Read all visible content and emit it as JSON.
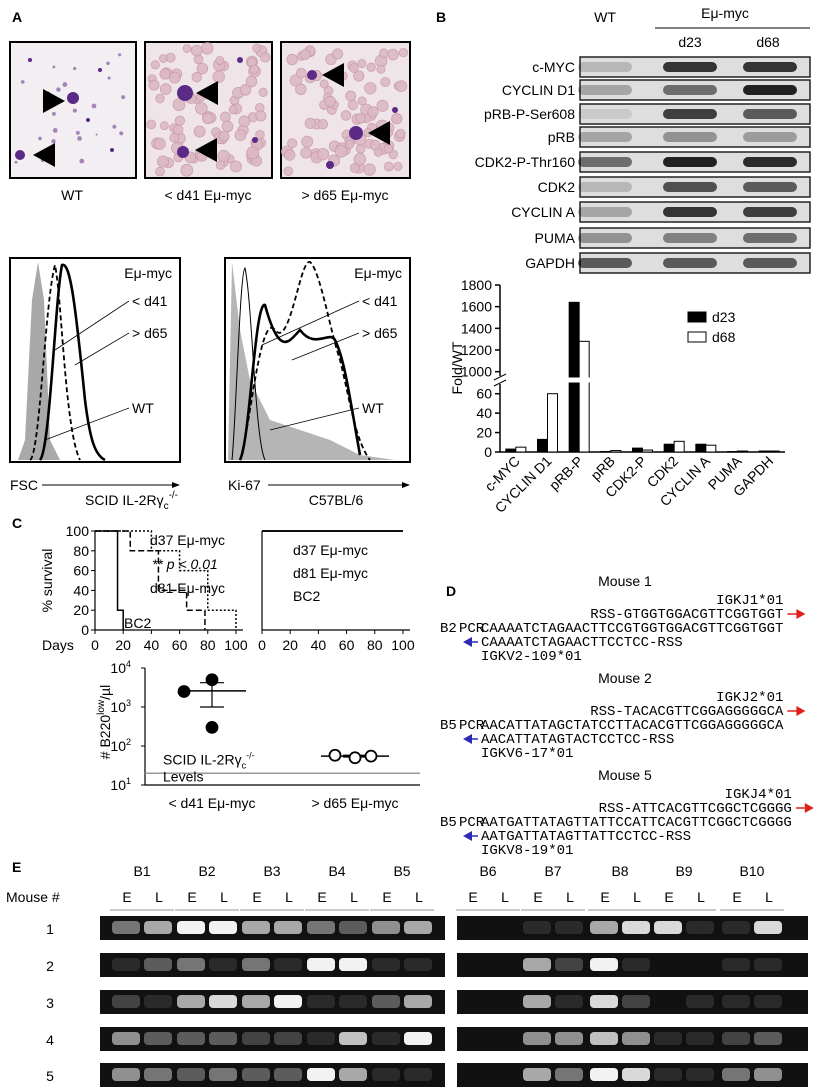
{
  "panel_labels": [
    "A",
    "B",
    "C",
    "D",
    "E"
  ],
  "panel_a": {
    "captions": [
      "WT",
      "< d41 Eμ-myc",
      "> d65 Eμ-myc"
    ],
    "flow": [
      {
        "title": "Eμ-myc",
        "curve_labels": [
          "< d41",
          "> d65",
          "WT"
        ],
        "x_label": "FSC"
      },
      {
        "title": "Eμ-myc",
        "curve_labels": [
          "< d41",
          "> d65",
          "WT"
        ],
        "x_label": "Ki-67"
      }
    ]
  },
  "panel_b": {
    "lanes": [
      "WT",
      "Eμ-myc"
    ],
    "days": [
      "d23",
      "d68"
    ],
    "blots": [
      "c-MYC",
      "CYCLIN D1",
      "pRB-P-Ser608",
      "pRB",
      "CDK2-P-Thr160",
      "CDK2",
      "CYCLIN A",
      "PUMA",
      "GAPDH"
    ]
  },
  "chart_data": [
    {
      "type": "bar",
      "y_label": "Fold/WT",
      "categories": [
        "c-MYC",
        "CYCLIN D1",
        "pRB-P",
        "pRB",
        "CDK2-P",
        "CDK2",
        "CYCLIN A",
        "PUMA",
        "GAPDH"
      ],
      "series": [
        {
          "name": "d23",
          "color": "#000000",
          "values": [
            3,
            13,
            1640,
            0.5,
            4,
            8,
            8,
            0.5,
            1
          ]
        },
        {
          "name": "d68",
          "color": "#ffffff",
          "values": [
            5,
            60,
            1280,
            1.5,
            2,
            11,
            7,
            1,
            1
          ]
        }
      ],
      "ylim": [
        0,
        1800
      ],
      "y_break": [
        70,
        960
      ],
      "yticks": [
        0,
        20,
        40,
        60,
        1000,
        1200,
        1400,
        1600,
        1800
      ],
      "legend": "upper right"
    },
    {
      "type": "line",
      "title": [
        "SCID IL-2Rγ",
        "c",
        "-/-"
      ],
      "x_label": "Days",
      "y_label": "% survival",
      "xlim": [
        0,
        105
      ],
      "ylim": [
        0,
        100
      ],
      "xticks": [
        0,
        20,
        40,
        60,
        80,
        100
      ],
      "yticks": [
        0,
        20,
        40,
        60,
        80,
        100
      ],
      "series": [
        {
          "name": "d37 Eμ-myc",
          "color": "#000000",
          "dash": "dotted",
          "x": [
            0,
            40,
            40,
            60,
            60,
            80,
            80,
            100,
            100
          ],
          "values": [
            100,
            100,
            80,
            80,
            60,
            60,
            20,
            20,
            0
          ]
        },
        {
          "name": "d81 Eμ-myc",
          "color": "#000000",
          "dash": "dashed",
          "x": [
            0,
            25,
            25,
            45,
            45,
            65,
            65,
            78,
            78
          ],
          "values": [
            100,
            100,
            80,
            80,
            40,
            40,
            20,
            20,
            0
          ]
        },
        {
          "name": "BC2",
          "color": "#000000",
          "dash": "solid",
          "x": [
            0,
            16,
            16,
            20,
            20
          ],
          "values": [
            100,
            100,
            20,
            20,
            0
          ]
        }
      ],
      "annotation": "** p < 0.01"
    },
    {
      "type": "line",
      "title": "C57BL/6",
      "xlim": [
        0,
        105
      ],
      "ylim": [
        0,
        100
      ],
      "xticks": [
        0,
        20,
        40,
        60,
        80,
        100
      ],
      "series": [
        {
          "name": "d37 Eμ-myc",
          "color": "#000000",
          "dash": "solid",
          "x": [
            0,
            100
          ],
          "values": [
            100,
            100
          ]
        },
        {
          "name": "d81 Eμ-myc",
          "color": "#000000",
          "dash": "solid",
          "x": [
            0,
            100
          ],
          "values": [
            100,
            100
          ]
        },
        {
          "name": "BC2",
          "color": "#000000",
          "dash": "solid",
          "x": [
            0,
            100
          ],
          "values": [
            100,
            100
          ]
        }
      ]
    },
    {
      "type": "scatter",
      "y_label": [
        "# B220",
        "low",
        "/µl"
      ],
      "categories": [
        "< d41 Eμ-myc",
        "> d65 Eμ-myc"
      ],
      "values": [
        [
          5000,
          2500,
          300
        ],
        [
          58,
          50,
          55
        ]
      ],
      "mean": [
        2600,
        55
      ],
      "sem": [
        1600,
        3
      ],
      "marker_fill": [
        "#000000",
        "#ffffff"
      ],
      "log_scale": true,
      "ylim": [
        10,
        10000
      ],
      "yticks": [
        {
          "value": 10,
          "label": "10",
          "exponent": "1"
        },
        {
          "value": 100,
          "label": "10",
          "exponent": "2"
        },
        {
          "value": 1000,
          "label": "10",
          "exponent": "3"
        },
        {
          "value": 10000,
          "label": "10",
          "exponent": "4"
        }
      ],
      "reference_line": 20,
      "reference_label": [
        "SCID IL-2Rγ",
        "c",
        "-/-",
        "Levels"
      ]
    }
  ],
  "panel_d": {
    "mice": [
      {
        "title": "Mouse 1",
        "j_gene": "IGKJ1*01",
        "j_rss": "RSS-GTGGTGGACGTTCGGTGGT",
        "clone": "B2",
        "method": "PCR",
        "pcr_v": "CAAAATCTAGAACTTCC",
        "pcr_j": "GTGGTGGACGTTCGGTGGT",
        "v_rss": "CAAAATCTAGAACTTCCTCC-RSS",
        "v_gene": "IGKV2-109*01"
      },
      {
        "title": "Mouse 2",
        "j_gene": "IGKJ2*01",
        "j_rss": "RSS-TACACGTTCGGAGGGGGCA",
        "clone": "B5",
        "method": "PCR",
        "pcr_v": "AACATTATAG",
        "pcr_n": "CTATCCT",
        "pcr_j": "TACACGTTCGGAGGGGGCA",
        "v_rss": "AACATTATAGTACTCCTCC-RSS",
        "v_gene": "IGKV6-17*01"
      },
      {
        "title": "Mouse 5",
        "j_gene": "IGKJ4*01",
        "j_rss": "RSS-ATTCACGTTCGGCTCGGGG",
        "clone": "B5",
        "method": "PCR",
        "pcr_v": "AATGATTATAGTTATTCC",
        "pcr_j": "ATTCACGTTCGGCTCGGGG",
        "v_rss": "AATGATTATAGTTATTCCTCC-RSS",
        "v_gene": "IGKV8-19*01"
      }
    ]
  },
  "panel_e": {
    "clones": [
      "B1",
      "B2",
      "B3",
      "B4",
      "B5",
      "B6",
      "B7",
      "B8",
      "B9",
      "B10"
    ],
    "lanes": [
      "E",
      "L"
    ],
    "row_header": "Mouse #",
    "mice": [
      1,
      2,
      3,
      4,
      5
    ]
  }
}
